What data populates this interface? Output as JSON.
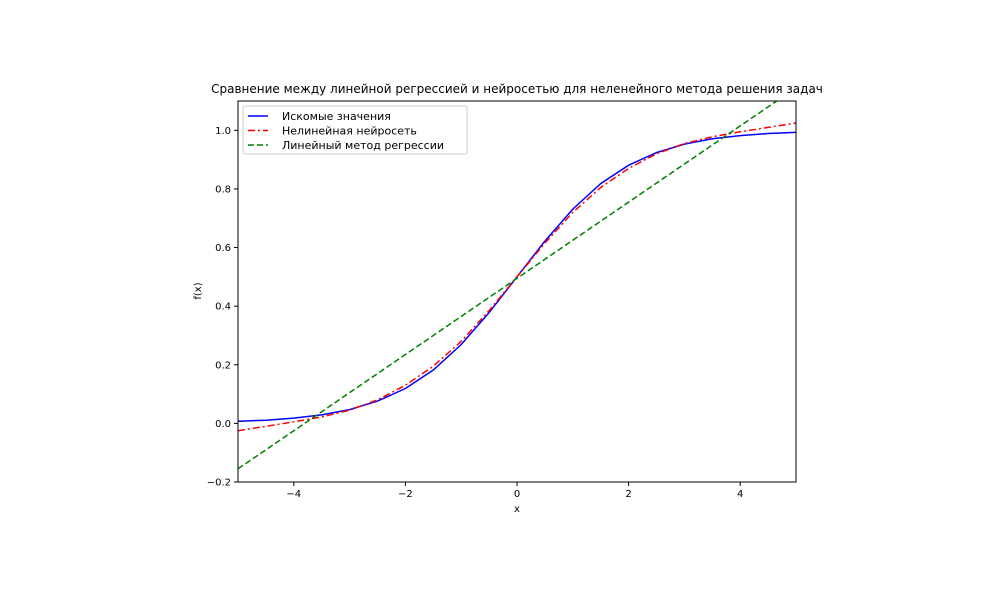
{
  "chart_data": {
    "type": "line",
    "title": "Сравнение между линейной регрессией и нейросетью для неленейного метода решения задач",
    "xlabel": "x",
    "ylabel": "f(x)",
    "xlim": [
      -5,
      5
    ],
    "ylim": [
      -0.2,
      1.1
    ],
    "x_ticks": [
      -4,
      -2,
      0,
      2,
      4
    ],
    "x_tick_labels": [
      "−4",
      "−2",
      "0",
      "2",
      "4"
    ],
    "y_ticks": [
      -0.2,
      0.0,
      0.2,
      0.4,
      0.6,
      0.8,
      1.0
    ],
    "y_tick_labels": [
      "−0.2",
      "0.0",
      "0.2",
      "0.4",
      "0.6",
      "0.8",
      "1.0"
    ],
    "grid": false,
    "legend_position": "top-left",
    "x": [
      -5,
      -4.5,
      -4,
      -3.5,
      -3,
      -2.5,
      -2,
      -1.5,
      -1,
      -0.5,
      0,
      0.5,
      1,
      1.5,
      2,
      2.5,
      3,
      3.5,
      4,
      4.5,
      5
    ],
    "series": [
      {
        "name": "Искомые значения",
        "color": "#0000ff",
        "style": "solid",
        "values": [
          0.007,
          0.011,
          0.018,
          0.029,
          0.047,
          0.076,
          0.119,
          0.182,
          0.269,
          0.378,
          0.5,
          0.622,
          0.731,
          0.818,
          0.881,
          0.924,
          0.953,
          0.971,
          0.982,
          0.989,
          0.993
        ]
      },
      {
        "name": "Нелинейная нейросеть",
        "color": "#ff0000",
        "style": "dashdot",
        "values": [
          -0.025,
          -0.01,
          0.005,
          0.022,
          0.045,
          0.08,
          0.13,
          0.195,
          0.28,
          0.385,
          0.5,
          0.615,
          0.72,
          0.805,
          0.87,
          0.92,
          0.955,
          0.978,
          0.995,
          1.01,
          1.025
        ]
      },
      {
        "name": "Линейный метод регрессии",
        "color": "#008000",
        "style": "dashed",
        "values": [
          -0.155,
          -0.09,
          -0.025,
          0.04,
          0.105,
          0.17,
          0.235,
          0.3,
          0.365,
          0.43,
          0.495,
          0.56,
          0.625,
          0.69,
          0.755,
          0.82,
          0.885,
          0.95,
          1.015,
          1.08,
          1.145
        ]
      }
    ]
  }
}
